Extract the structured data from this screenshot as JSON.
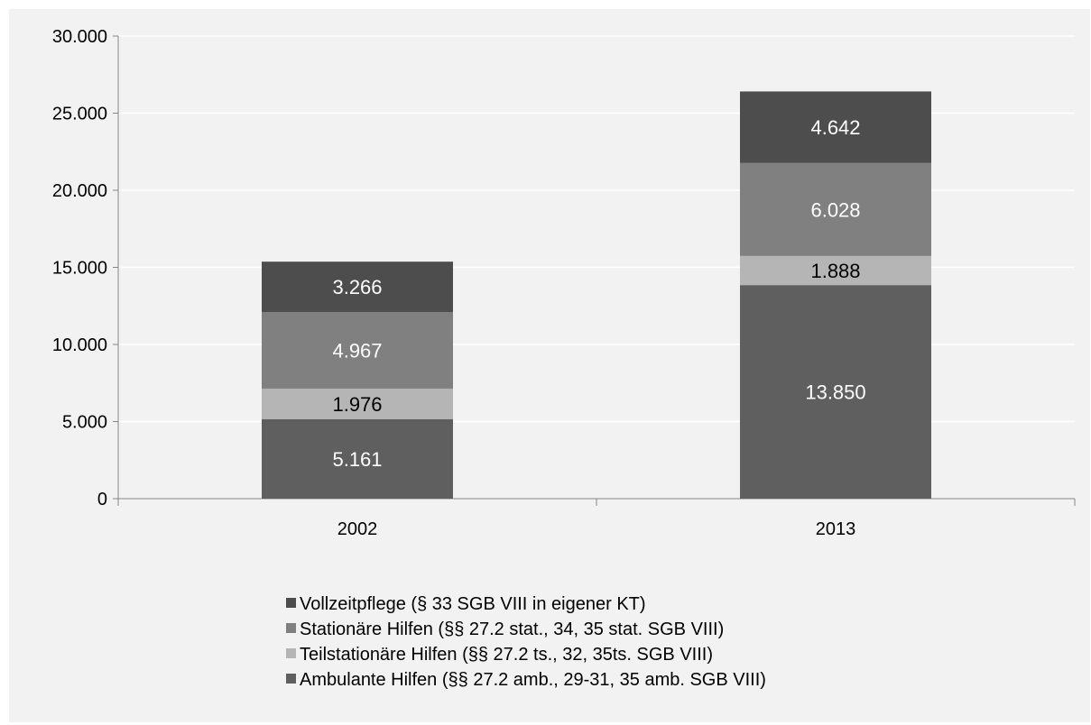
{
  "chart_data": {
    "type": "bar",
    "stacked": true,
    "categories": [
      "2002",
      "2013"
    ],
    "ylim": [
      0,
      30000
    ],
    "yticks": [
      0,
      5000,
      10000,
      15000,
      20000,
      25000,
      30000
    ],
    "ytick_labels": [
      "0",
      "5.000",
      "10.000",
      "15.000",
      "20.000",
      "25.000",
      "30.000"
    ],
    "grid": true,
    "legend_position": "bottom",
    "series": [
      {
        "name": "Ambulante Hilfen (§§ 27.2 amb., 29-31, 35 amb. SGB VIII)",
        "values": [
          5161,
          13850
        ],
        "labels": [
          "5.161",
          "13.850"
        ],
        "color": "#5f5f5f",
        "label_color": "#ffffff"
      },
      {
        "name": "Teilstationäre Hilfen (§§ 27.2 ts., 32, 35ts. SGB VIII)",
        "values": [
          1976,
          1888
        ],
        "labels": [
          "1.976",
          "1.888"
        ],
        "color": "#b5b5b5",
        "label_color": "#000000"
      },
      {
        "name": "Stationäre Hilfen (§§ 27.2 stat., 34, 35 stat. SGB VIII)",
        "values": [
          4967,
          6028
        ],
        "labels": [
          "4.967",
          "6.028"
        ],
        "color": "#808080",
        "label_color": "#ffffff"
      },
      {
        "name": "Vollzeitpflege (§ 33 SGB VIII in eigener KT)",
        "values": [
          3266,
          4642
        ],
        "labels": [
          "3.266",
          "4.642"
        ],
        "color": "#4d4d4d",
        "label_color": "#ffffff"
      }
    ]
  }
}
